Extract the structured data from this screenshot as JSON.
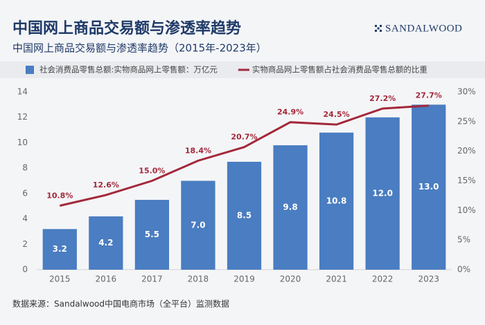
{
  "chart_data": {
    "type": "bar",
    "title": "中国网上商品交易额与渗透率趋势",
    "subtitle": "中国网上商品交易额与渗透率趋势（2015年-2023年）",
    "logo": "SANDALWOOD",
    "source": "数据来源：Sandalwood中国电商市场（全平台）监测数据",
    "categories": [
      "2015",
      "2016",
      "2017",
      "2018",
      "2019",
      "2020",
      "2021",
      "2022",
      "2023"
    ],
    "series": [
      {
        "name": "社会消费品零售总额:实物商品网上零售额：万亿元",
        "color": "#4a7dc1",
        "values": [
          3.2,
          4.2,
          5.5,
          7.0,
          8.5,
          9.8,
          10.8,
          12.0,
          13.0
        ],
        "value_labels": [
          "3.2",
          "4.2",
          "5.5",
          "7.0",
          "8.5",
          "9.8",
          "10.8",
          "12.0",
          "13.0"
        ]
      },
      {
        "name": "实物商品网上零售额占社会消费品零售总额的比重",
        "color": "#a3283a",
        "type": "line",
        "axis": "y2",
        "values": [
          10.8,
          12.6,
          15.0,
          18.4,
          20.7,
          24.9,
          24.5,
          27.2,
          27.7
        ],
        "value_labels": [
          "10.8%",
          "12.6%",
          "15.0%",
          "18.4%",
          "20.7%",
          "24.9%",
          "24.5%",
          "27.2%",
          "27.7%"
        ]
      }
    ],
    "ylim": [
      0,
      14
    ],
    "yticks": [
      0,
      2,
      4,
      6,
      8,
      10,
      12,
      14
    ],
    "y2lim": [
      0,
      30
    ],
    "y2ticks": [
      {
        "value": 0,
        "label": "0%"
      },
      {
        "value": 5,
        "label": "5%"
      },
      {
        "value": 10,
        "label": "10%"
      },
      {
        "value": 15,
        "label": "15%"
      },
      {
        "value": 20,
        "label": "20%"
      },
      {
        "value": 25,
        "label": "25%"
      },
      {
        "value": 30,
        "label": "30%"
      }
    ],
    "grid": false,
    "legend": "top"
  }
}
